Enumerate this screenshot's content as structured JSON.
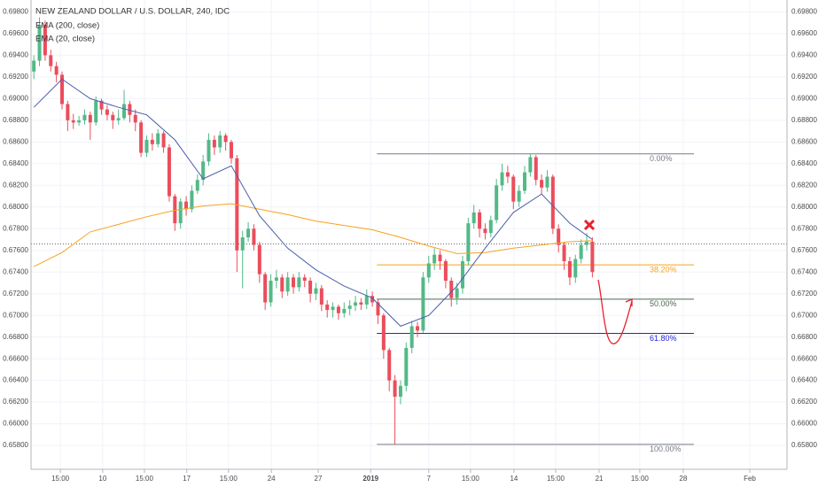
{
  "chart_data": {
    "type": "candlestick",
    "title": "NEW ZEALAND DOLLAR / U.S. DOLLAR, 240, IDC",
    "up_color": "#53b987",
    "down_color": "#eb4d5c",
    "open": [
      0.6925,
      0.6935,
      0.6968,
      0.694,
      0.693,
      0.6922,
      0.6895,
      0.688,
      0.6878,
      0.688,
      0.6885,
      0.6878,
      0.6898,
      0.689,
      0.6885,
      0.688,
      0.6882,
      0.6895,
      0.6885,
      0.6878,
      0.685,
      0.6862,
      0.6858,
      0.6868,
      0.6855,
      0.681,
      0.6785,
      0.6805,
      0.6798,
      0.6815,
      0.6825,
      0.6842,
      0.6862,
      0.6855,
      0.6866,
      0.686,
      0.6845,
      0.676,
      0.6772,
      0.678,
      0.6765,
      0.6738,
      0.6712,
      0.6732,
      0.6735,
      0.6722,
      0.6735,
      0.6726,
      0.6735,
      0.6732,
      0.672,
      0.6725,
      0.671,
      0.6705,
      0.6708,
      0.6702,
      0.6706,
      0.6709,
      0.6712,
      0.671,
      0.6718,
      0.6712,
      0.67,
      0.6668,
      0.664,
      0.6625,
      0.6635,
      0.667,
      0.669,
      0.6686,
      0.6735,
      0.6748,
      0.6756,
      0.675,
      0.6732,
      0.6716,
      0.6725,
      0.675,
      0.6785,
      0.6795,
      0.678,
      0.6776,
      0.6788,
      0.682,
      0.6832,
      0.6828,
      0.6805,
      0.6815,
      0.6832,
      0.6846,
      0.6825,
      0.6818,
      0.6828,
      0.678,
      0.6765,
      0.675,
      0.6735,
      0.6752,
      0.6765,
      0.6768
    ],
    "high": [
      0.694,
      0.6975,
      0.6972,
      0.6945,
      0.6934,
      0.6925,
      0.6898,
      0.6886,
      0.6884,
      0.689,
      0.6888,
      0.6902,
      0.69,
      0.6894,
      0.6888,
      0.689,
      0.6908,
      0.6898,
      0.689,
      0.688,
      0.6866,
      0.6868,
      0.6872,
      0.687,
      0.6858,
      0.6812,
      0.6808,
      0.681,
      0.682,
      0.683,
      0.6848,
      0.6868,
      0.6866,
      0.687,
      0.6868,
      0.6862,
      0.6848,
      0.6778,
      0.6786,
      0.6784,
      0.6768,
      0.674,
      0.6738,
      0.6742,
      0.6738,
      0.674,
      0.6738,
      0.674,
      0.6738,
      0.6735,
      0.673,
      0.6728,
      0.6714,
      0.6712,
      0.671,
      0.6712,
      0.6714,
      0.6718,
      0.6716,
      0.6724,
      0.6722,
      0.6715,
      0.6702,
      0.667,
      0.6645,
      0.664,
      0.6675,
      0.6695,
      0.6694,
      0.674,
      0.6755,
      0.6762,
      0.676,
      0.6752,
      0.6735,
      0.673,
      0.6755,
      0.679,
      0.6802,
      0.6798,
      0.6785,
      0.6792,
      0.6826,
      0.684,
      0.6838,
      0.683,
      0.682,
      0.6838,
      0.6849,
      0.6848,
      0.683,
      0.6834,
      0.683,
      0.6784,
      0.6768,
      0.6754,
      0.6756,
      0.677,
      0.6776,
      0.6772
    ],
    "low": [
      0.6918,
      0.693,
      0.6935,
      0.6925,
      0.6915,
      0.689,
      0.687,
      0.6872,
      0.6875,
      0.6876,
      0.6862,
      0.6875,
      0.6885,
      0.688,
      0.6872,
      0.6876,
      0.688,
      0.6878,
      0.687,
      0.6846,
      0.6846,
      0.6852,
      0.6855,
      0.685,
      0.6805,
      0.6778,
      0.678,
      0.6792,
      0.6795,
      0.6812,
      0.682,
      0.6838,
      0.6848,
      0.685,
      0.6852,
      0.684,
      0.674,
      0.6725,
      0.6768,
      0.676,
      0.673,
      0.6705,
      0.6708,
      0.6725,
      0.6716,
      0.6718,
      0.672,
      0.6722,
      0.6726,
      0.6712,
      0.6714,
      0.6704,
      0.6698,
      0.6698,
      0.6696,
      0.6698,
      0.67,
      0.6704,
      0.6705,
      0.6706,
      0.6708,
      0.6692,
      0.666,
      0.663,
      0.6581,
      0.6618,
      0.663,
      0.6665,
      0.668,
      0.6684,
      0.673,
      0.6742,
      0.6742,
      0.6725,
      0.6708,
      0.671,
      0.672,
      0.6746,
      0.678,
      0.6772,
      0.677,
      0.6772,
      0.6785,
      0.6815,
      0.6822,
      0.6798,
      0.68,
      0.6812,
      0.6828,
      0.682,
      0.6812,
      0.6814,
      0.6775,
      0.6758,
      0.6742,
      0.6728,
      0.673,
      0.6748,
      0.676,
      0.6735
    ],
    "close": [
      0.6935,
      0.6968,
      0.694,
      0.693,
      0.6922,
      0.6895,
      0.688,
      0.6878,
      0.688,
      0.6885,
      0.6878,
      0.6898,
      0.689,
      0.6885,
      0.688,
      0.6882,
      0.6895,
      0.6885,
      0.6878,
      0.685,
      0.6862,
      0.6858,
      0.6868,
      0.6855,
      0.681,
      0.6785,
      0.6805,
      0.6798,
      0.6815,
      0.6825,
      0.6842,
      0.6862,
      0.6855,
      0.6866,
      0.686,
      0.6845,
      0.676,
      0.6772,
      0.678,
      0.6765,
      0.6738,
      0.6712,
      0.6732,
      0.6735,
      0.6722,
      0.6735,
      0.6726,
      0.6735,
      0.6732,
      0.672,
      0.6725,
      0.671,
      0.6705,
      0.6708,
      0.6702,
      0.6706,
      0.6709,
      0.6712,
      0.671,
      0.6718,
      0.6712,
      0.67,
      0.6668,
      0.664,
      0.6625,
      0.6635,
      0.667,
      0.669,
      0.6686,
      0.6735,
      0.6748,
      0.6756,
      0.675,
      0.6732,
      0.6716,
      0.6725,
      0.675,
      0.6785,
      0.6795,
      0.678,
      0.6776,
      0.6788,
      0.682,
      0.6832,
      0.6828,
      0.6805,
      0.6815,
      0.6832,
      0.6846,
      0.6825,
      0.6818,
      0.6828,
      0.678,
      0.6765,
      0.675,
      0.6735,
      0.6752,
      0.6765,
      0.6768,
      0.674
    ],
    "lines": [
      {
        "name": "EMA (200, close)",
        "color": "#f7a21b",
        "x": [
          0,
          5,
          10,
          15,
          20,
          25,
          30,
          35,
          40,
          45,
          50,
          55,
          60,
          65,
          70,
          75,
          80,
          85,
          90,
          95,
          99
        ],
        "values": [
          0.6745,
          0.6758,
          0.6777,
          0.6784,
          0.6791,
          0.6797,
          0.6801,
          0.6803,
          0.6798,
          0.6793,
          0.6787,
          0.6783,
          0.6779,
          0.6772,
          0.6764,
          0.6757,
          0.6758,
          0.6762,
          0.6765,
          0.6768,
          0.6769
        ]
      },
      {
        "name": "EMA (20, close)",
        "color": "#4a5fa8",
        "x": [
          0,
          5,
          10,
          15,
          20,
          25,
          30,
          35,
          40,
          45,
          50,
          55,
          60,
          65,
          70,
          75,
          80,
          85,
          90,
          95,
          99
        ],
        "values": [
          0.6892,
          0.6918,
          0.69,
          0.6892,
          0.6885,
          0.6862,
          0.6826,
          0.6838,
          0.6792,
          0.6762,
          0.6742,
          0.6727,
          0.6716,
          0.669,
          0.67,
          0.6727,
          0.6762,
          0.6795,
          0.6812,
          0.6785,
          0.677
        ]
      }
    ],
    "price_line": 0.6766,
    "fib": {
      "x": [
        61.3,
        117.5
      ],
      "levels": [
        {
          "value": 0.6849,
          "label": "0.00%",
          "color": "#787b86"
        },
        {
          "value": 0.67466,
          "label": "38.20%",
          "color": "#f7a21b"
        },
        {
          "value": 0.6715,
          "label": "50.00%",
          "color": "#4c6a50"
        },
        {
          "value": 0.66834,
          "label": "61.80%",
          "color": "#2424d8"
        },
        {
          "value": 0.6581,
          "label": "100.00%",
          "color": "#787b86"
        }
      ]
    },
    "xlim": [
      0,
      134
    ],
    "xticks": [
      {
        "value": 5.2,
        "label": "15:00"
      },
      {
        "value": 12.7,
        "label": "10"
      },
      {
        "value": 20.1,
        "label": "15:00"
      },
      {
        "value": 27.6,
        "label": "17"
      },
      {
        "value": 35.0,
        "label": "15:00"
      },
      {
        "value": 42.6,
        "label": "24"
      },
      {
        "value": 50.9,
        "label": "27"
      },
      {
        "value": 60.2,
        "label": "2019",
        "bold": true
      },
      {
        "value": 70.5,
        "label": "7"
      },
      {
        "value": 77.9,
        "label": "15:00"
      },
      {
        "value": 85.6,
        "label": "14"
      },
      {
        "value": 93.0,
        "label": "15:00"
      },
      {
        "value": 100.7,
        "label": "21"
      },
      {
        "value": 107.9,
        "label": "15:00"
      },
      {
        "value": 115.6,
        "label": "28"
      },
      {
        "value": 127.4,
        "label": "Feb"
      }
    ],
    "ylim": [
      0.6558,
      0.6991
    ],
    "yticks": [
      {
        "value": 0.698,
        "label": "0.69800"
      },
      {
        "value": 0.696,
        "label": "0.69600"
      },
      {
        "value": 0.694,
        "label": "0.69400"
      },
      {
        "value": 0.692,
        "label": "0.69200"
      },
      {
        "value": 0.69,
        "label": "0.69000"
      },
      {
        "value": 0.688,
        "label": "0.68800"
      },
      {
        "value": 0.686,
        "label": "0.68600"
      },
      {
        "value": 0.684,
        "label": "0.68400"
      },
      {
        "value": 0.682,
        "label": "0.68200"
      },
      {
        "value": 0.68,
        "label": "0.68000"
      },
      {
        "value": 0.678,
        "label": "0.67800"
      },
      {
        "value": 0.676,
        "label": "0.67600"
      },
      {
        "value": 0.674,
        "label": "0.67400"
      },
      {
        "value": 0.672,
        "label": "0.67200"
      },
      {
        "value": 0.67,
        "label": "0.67000"
      },
      {
        "value": 0.668,
        "label": "0.66800"
      },
      {
        "value": 0.666,
        "label": "0.66600"
      },
      {
        "value": 0.664,
        "label": "0.66400"
      },
      {
        "value": 0.662,
        "label": "0.66200"
      },
      {
        "value": 0.66,
        "label": "0.66000"
      },
      {
        "value": 0.658,
        "label": "0.65800"
      }
    ],
    "grid": true
  }
}
